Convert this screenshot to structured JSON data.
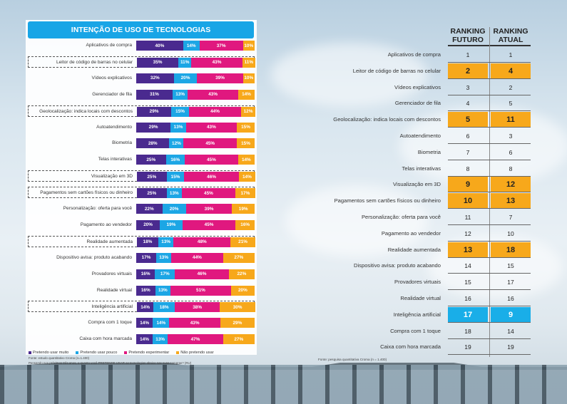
{
  "left": {
    "title": "INTENÇÃO DE USO DE TECNOLOGIAS",
    "legend": [
      "Pretendo usar muito",
      "Pretendo usar pouco",
      "Pretendo experimentar",
      "Não pretendo usar"
    ],
    "colors": [
      "#4a2a8f",
      "#1ca6e5",
      "#e0187f",
      "#f7a81b"
    ],
    "note1": "Fonte: estudo quantitativo Croma (n=1.400)",
    "note2": "Pensando nos próximos três anos, o quanto você PRETENDE USAR as tecnologias abaixo nas suas compras? (RU)"
  },
  "right": {
    "head1": "RANKING FUTURO",
    "head2": "RANKING ATUAL",
    "note": "Fonte: pesquisa quantitativa Croma (n = 1.400)"
  },
  "chart_data": {
    "type": "bar",
    "title": "INTENÇÃO DE USO DE TECNOLOGIAS",
    "orientation": "horizontal-stacked-100",
    "series_names": [
      "Pretendo usar muito",
      "Pretendo usar pouco",
      "Pretendo experimentar",
      "Não pretendo usar"
    ],
    "rows": [
      {
        "label": "Aplicativos de compra",
        "values": [
          40,
          14,
          37,
          10
        ],
        "highlight": false,
        "rank_future": "1",
        "rank_current": "1",
        "rank_style": "none"
      },
      {
        "label": "Leitor de código de barras no celular",
        "values": [
          35,
          11,
          43,
          11
        ],
        "highlight": true,
        "rank_future": "2",
        "rank_current": "4",
        "rank_style": "orange"
      },
      {
        "label": "Vídeos explicativos",
        "values": [
          32,
          20,
          39,
          10
        ],
        "highlight": false,
        "rank_future": "3",
        "rank_current": "2",
        "rank_style": "none"
      },
      {
        "label": "Gerenciador de fila",
        "values": [
          31,
          13,
          43,
          14
        ],
        "highlight": false,
        "rank_future": "4",
        "rank_current": "5",
        "rank_style": "none"
      },
      {
        "label": "Geolocalização: indica locais com descontos",
        "values": [
          29,
          15,
          44,
          12
        ],
        "highlight": true,
        "rank_future": "5",
        "rank_current": "11",
        "rank_style": "orange"
      },
      {
        "label": "Autoatendimento",
        "values": [
          29,
          13,
          43,
          15
        ],
        "highlight": false,
        "rank_future": "6",
        "rank_current": "3",
        "rank_style": "none"
      },
      {
        "label": "Biometria",
        "values": [
          28,
          12,
          45,
          15
        ],
        "highlight": false,
        "rank_future": "7",
        "rank_current": "6",
        "rank_style": "none"
      },
      {
        "label": "Telas interativas",
        "values": [
          25,
          16,
          45,
          14
        ],
        "highlight": false,
        "rank_future": "8",
        "rank_current": "8",
        "rank_style": "none"
      },
      {
        "label": "Visualização em 3D",
        "values": [
          25,
          15,
          46,
          14
        ],
        "highlight": true,
        "rank_future": "9",
        "rank_current": "12",
        "rank_style": "orange"
      },
      {
        "label": "Pagamentos sem cartões físicos ou dinheiro",
        "values": [
          25,
          13,
          45,
          17
        ],
        "highlight": true,
        "rank_future": "10",
        "rank_current": "13",
        "rank_style": "orange"
      },
      {
        "label": "Personalização: oferta para você",
        "values": [
          22,
          20,
          39,
          19
        ],
        "highlight": false,
        "rank_future": "11",
        "rank_current": "7",
        "rank_style": "none"
      },
      {
        "label": "Pagamento ao vendedor",
        "values": [
          20,
          19,
          45,
          16
        ],
        "highlight": false,
        "rank_future": "12",
        "rank_current": "10",
        "rank_style": "none"
      },
      {
        "label": "Realidade aumentada",
        "values": [
          18,
          13,
          48,
          21
        ],
        "highlight": true,
        "rank_future": "13",
        "rank_current": "18",
        "rank_style": "orange"
      },
      {
        "label": "Dispositivo avisa: produto acabando",
        "values": [
          17,
          13,
          44,
          27
        ],
        "highlight": false,
        "rank_future": "14",
        "rank_current": "15",
        "rank_style": "none"
      },
      {
        "label": "Provadores virtuais",
        "values": [
          16,
          17,
          46,
          22
        ],
        "highlight": false,
        "rank_future": "15",
        "rank_current": "17",
        "rank_style": "none"
      },
      {
        "label": "Realidade virtual",
        "values": [
          16,
          13,
          51,
          20
        ],
        "highlight": false,
        "rank_future": "16",
        "rank_current": "16",
        "rank_style": "none"
      },
      {
        "label": "Inteligência artificial",
        "values": [
          14,
          18,
          38,
          30
        ],
        "highlight": true,
        "rank_future": "17",
        "rank_current": "9",
        "rank_style": "blue"
      },
      {
        "label": "Compra com 1 toque",
        "values": [
          14,
          14,
          43,
          29
        ],
        "highlight": false,
        "rank_future": "18",
        "rank_current": "14",
        "rank_style": "none"
      },
      {
        "label": "Caixa com hora marcada",
        "values": [
          14,
          13,
          47,
          27
        ],
        "highlight": false,
        "rank_future": "19",
        "rank_current": "19",
        "rank_style": "none"
      }
    ]
  }
}
